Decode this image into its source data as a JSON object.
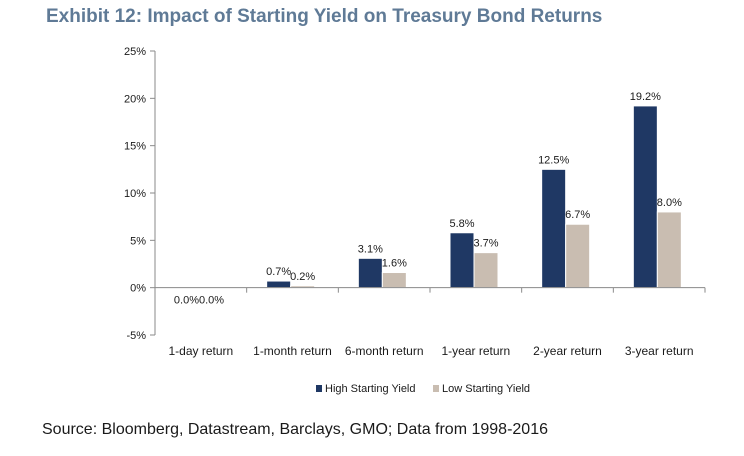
{
  "title": "Exhibit 12: Impact of Starting Yield on Treasury Bond Returns",
  "source": "Source:  Bloomberg, Datastream, Barclays, GMO; Data from 1998-2016",
  "colors": {
    "high": "#1f3864",
    "low": "#c9bdb1",
    "title": "#5f7a96",
    "axis": "#8a8a8a"
  },
  "chart_data": {
    "type": "bar",
    "categories": [
      "1-day return",
      "1-month return",
      "6-month return",
      "1-year return",
      "2-year return",
      "3-year return"
    ],
    "series": [
      {
        "name": "High Starting Yield",
        "values": [
          0.0,
          0.7,
          3.1,
          5.8,
          12.5,
          19.2
        ]
      },
      {
        "name": "Low Starting Yield",
        "values": [
          0.0,
          0.2,
          1.6,
          3.7,
          6.7,
          8.0
        ]
      }
    ],
    "data_labels": [
      [
        "0.0%",
        "0.7%",
        "3.1%",
        "5.8%",
        "12.5%",
        "19.2%"
      ],
      [
        "0.0%",
        "0.2%",
        "1.6%",
        "3.7%",
        "6.7%",
        "8.0%"
      ]
    ],
    "yticks": [
      -5,
      0,
      5,
      10,
      15,
      20,
      25
    ],
    "ytick_labels": [
      "-5%",
      "0%",
      "5%",
      "10%",
      "15%",
      "20%",
      "25%"
    ],
    "ylim": [
      -5,
      25
    ],
    "grid": false,
    "legend_position": "bottom"
  }
}
